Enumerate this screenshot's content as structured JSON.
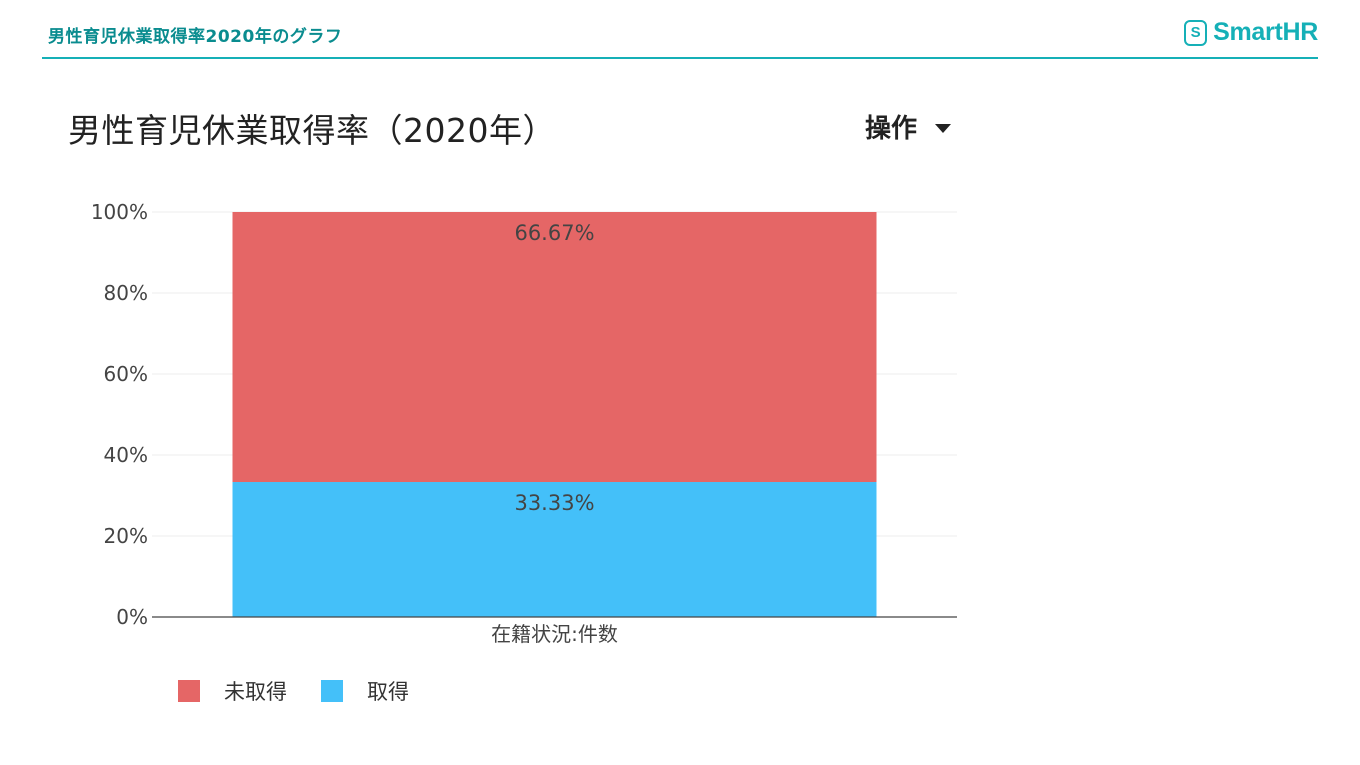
{
  "header": {
    "title": "男性育児休業取得率2020年のグラフ",
    "logo_mark": "S",
    "logo_text": "SmartHR",
    "accent_color": "#15b0b7"
  },
  "panel": {
    "title": "男性育児休業取得率（2020年）",
    "ops_label": "操作",
    "ops_icon": "caret-down-icon"
  },
  "chart_data": {
    "type": "bar",
    "stacked": true,
    "categories": [
      "在籍状況:件数"
    ],
    "series": [
      {
        "name": "取得",
        "values": [
          33.33
        ],
        "label": "33.33%",
        "color": "#44c0f9"
      },
      {
        "name": "未取得",
        "values": [
          66.67
        ],
        "label": "66.67%",
        "color": "#e56666"
      }
    ],
    "ylim": [
      0,
      100
    ],
    "yticks": [
      {
        "value": 0,
        "label": "0%"
      },
      {
        "value": 20,
        "label": "20%"
      },
      {
        "value": 40,
        "label": "40%"
      },
      {
        "value": 60,
        "label": "60%"
      },
      {
        "value": 80,
        "label": "80%"
      },
      {
        "value": 100,
        "label": "100%"
      }
    ],
    "grid": true,
    "legend": {
      "position": "bottom-left",
      "items": [
        {
          "label": "未取得",
          "color": "#e56666"
        },
        {
          "label": "取得",
          "color": "#44c0f9"
        }
      ]
    }
  }
}
